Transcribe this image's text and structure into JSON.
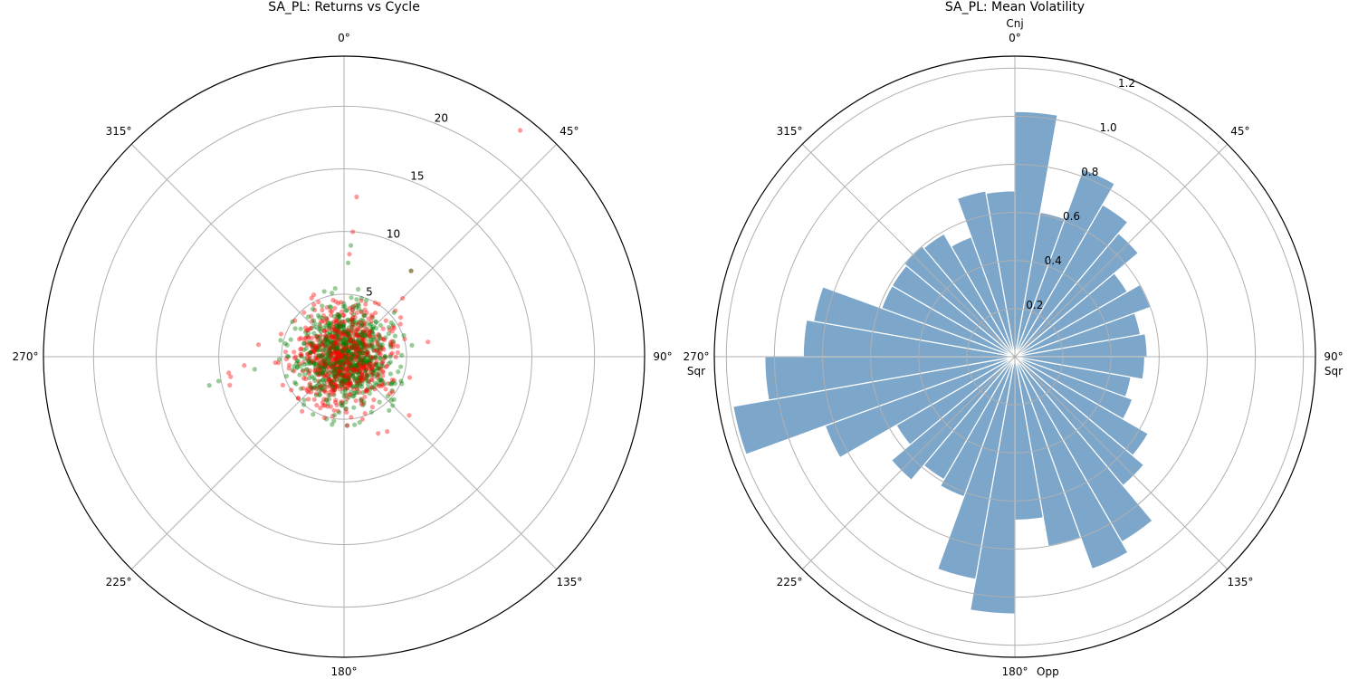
{
  "chart_data": [
    {
      "type": "scatter",
      "projection": "polar",
      "title": "SA_PL: Returns vs Cycle",
      "theta_direction": "clockwise",
      "theta_zero": "north",
      "theta_ticks": [
        "0°",
        "45°",
        "90°",
        "135°",
        "180°",
        "225°",
        "270°",
        "315°"
      ],
      "r_ticks": [
        5,
        10,
        15,
        20
      ],
      "r_tick_labels": [
        "5",
        "10",
        "15",
        "20"
      ],
      "rlim": [
        0,
        24
      ],
      "grid": true,
      "series_colors": {
        "up": "#ff0000",
        "down": "#008000"
      },
      "marker_alpha": 0.4,
      "dense_cluster": {
        "count": 1500,
        "seed": 11,
        "median_r": 2.2,
        "max_r": 5.5
      },
      "points": [
        {
          "theta": 37.9,
          "r": 22.9,
          "c": "up"
        },
        {
          "theta": 4.5,
          "r": 12.8,
          "c": "up"
        },
        {
          "theta": 4.0,
          "r": 10.0,
          "c": "up"
        },
        {
          "theta": 3.5,
          "r": 8.9,
          "c": "down"
        },
        {
          "theta": 3.0,
          "r": 8.2,
          "c": "up"
        },
        {
          "theta": 2.5,
          "r": 7.5,
          "c": "down"
        },
        {
          "theta": 38,
          "r": 8.7,
          "c": "up"
        },
        {
          "theta": 38,
          "r": 8.7,
          "c": "down"
        },
        {
          "theta": 45,
          "r": 6.6,
          "c": "up"
        },
        {
          "theta": 80,
          "r": 6.8,
          "c": "up"
        },
        {
          "theta": 100,
          "r": 4.6,
          "c": "down"
        },
        {
          "theta": 132,
          "r": 7.0,
          "c": "up"
        },
        {
          "theta": 150,
          "r": 6.9,
          "c": "up"
        },
        {
          "theta": 156,
          "r": 6.7,
          "c": "up"
        },
        {
          "theta": 140,
          "r": 5.6,
          "c": "down"
        },
        {
          "theta": 190,
          "r": 5.5,
          "c": "down"
        },
        {
          "theta": 189,
          "r": 5.2,
          "c": "down"
        },
        {
          "theta": 258,
          "r": 11.0,
          "c": "down"
        },
        {
          "theta": 259,
          "r": 10.2,
          "c": "down"
        },
        {
          "theta": 256,
          "r": 9.4,
          "c": "up"
        },
        {
          "theta": 260,
          "r": 9.2,
          "c": "up"
        },
        {
          "theta": 262,
          "r": 9.3,
          "c": "up"
        },
        {
          "theta": 265,
          "r": 8.0,
          "c": "up"
        },
        {
          "theta": 262,
          "r": 7.2,
          "c": "down"
        },
        {
          "theta": 278,
          "r": 6.9,
          "c": "up"
        },
        {
          "theta": 300,
          "r": 4.5,
          "c": "down"
        },
        {
          "theta": 330,
          "r": 4.8,
          "c": "up"
        },
        {
          "theta": 220,
          "r": 5.0,
          "c": "down"
        },
        {
          "theta": 60,
          "r": 5.2,
          "c": "up"
        },
        {
          "theta": 115,
          "r": 5.1,
          "c": "down"
        }
      ]
    },
    {
      "type": "bar",
      "projection": "polar",
      "title": "SA_PL: Mean Volatility",
      "theta_direction": "clockwise",
      "theta_zero": "north",
      "theta_ticks": [
        "0°",
        "45°",
        "90°",
        "135°",
        "180°",
        "225°",
        "270°",
        "315°"
      ],
      "phase_labels": {
        "n": "Cnj",
        "e": "Sqr",
        "s": "Opp",
        "w": "Sqr"
      },
      "r_ticks": [
        0.2,
        0.4,
        0.6,
        0.8,
        1.0,
        1.2
      ],
      "r_tick_labels": [
        "0.2",
        "0.4",
        "0.6",
        "0.8",
        "1.0",
        "1.2"
      ],
      "rlim": [
        0,
        1.25
      ],
      "grid": true,
      "bar_color": "#4682b4",
      "bar_alpha": 0.7,
      "bin_width_deg": 10,
      "bin_starts_deg": [
        0,
        10,
        20,
        30,
        40,
        50,
        60,
        70,
        80,
        90,
        100,
        110,
        120,
        130,
        140,
        150,
        160,
        170,
        180,
        190,
        200,
        210,
        220,
        230,
        240,
        250,
        260,
        270,
        280,
        290,
        300,
        310,
        320,
        330,
        340,
        350
      ],
      "values": [
        1.02,
        0.61,
        0.83,
        0.73,
        0.67,
        0.54,
        0.6,
        0.53,
        0.55,
        0.54,
        0.49,
        0.52,
        0.64,
        0.7,
        0.89,
        0.94,
        0.8,
        0.68,
        1.07,
        0.94,
        0.62,
        0.59,
        0.67,
        0.57,
        0.84,
        1.19,
        1.04,
        0.88,
        0.85,
        0.59,
        0.59,
        0.6,
        0.59,
        0.53,
        0.7,
        0.69
      ]
    }
  ]
}
